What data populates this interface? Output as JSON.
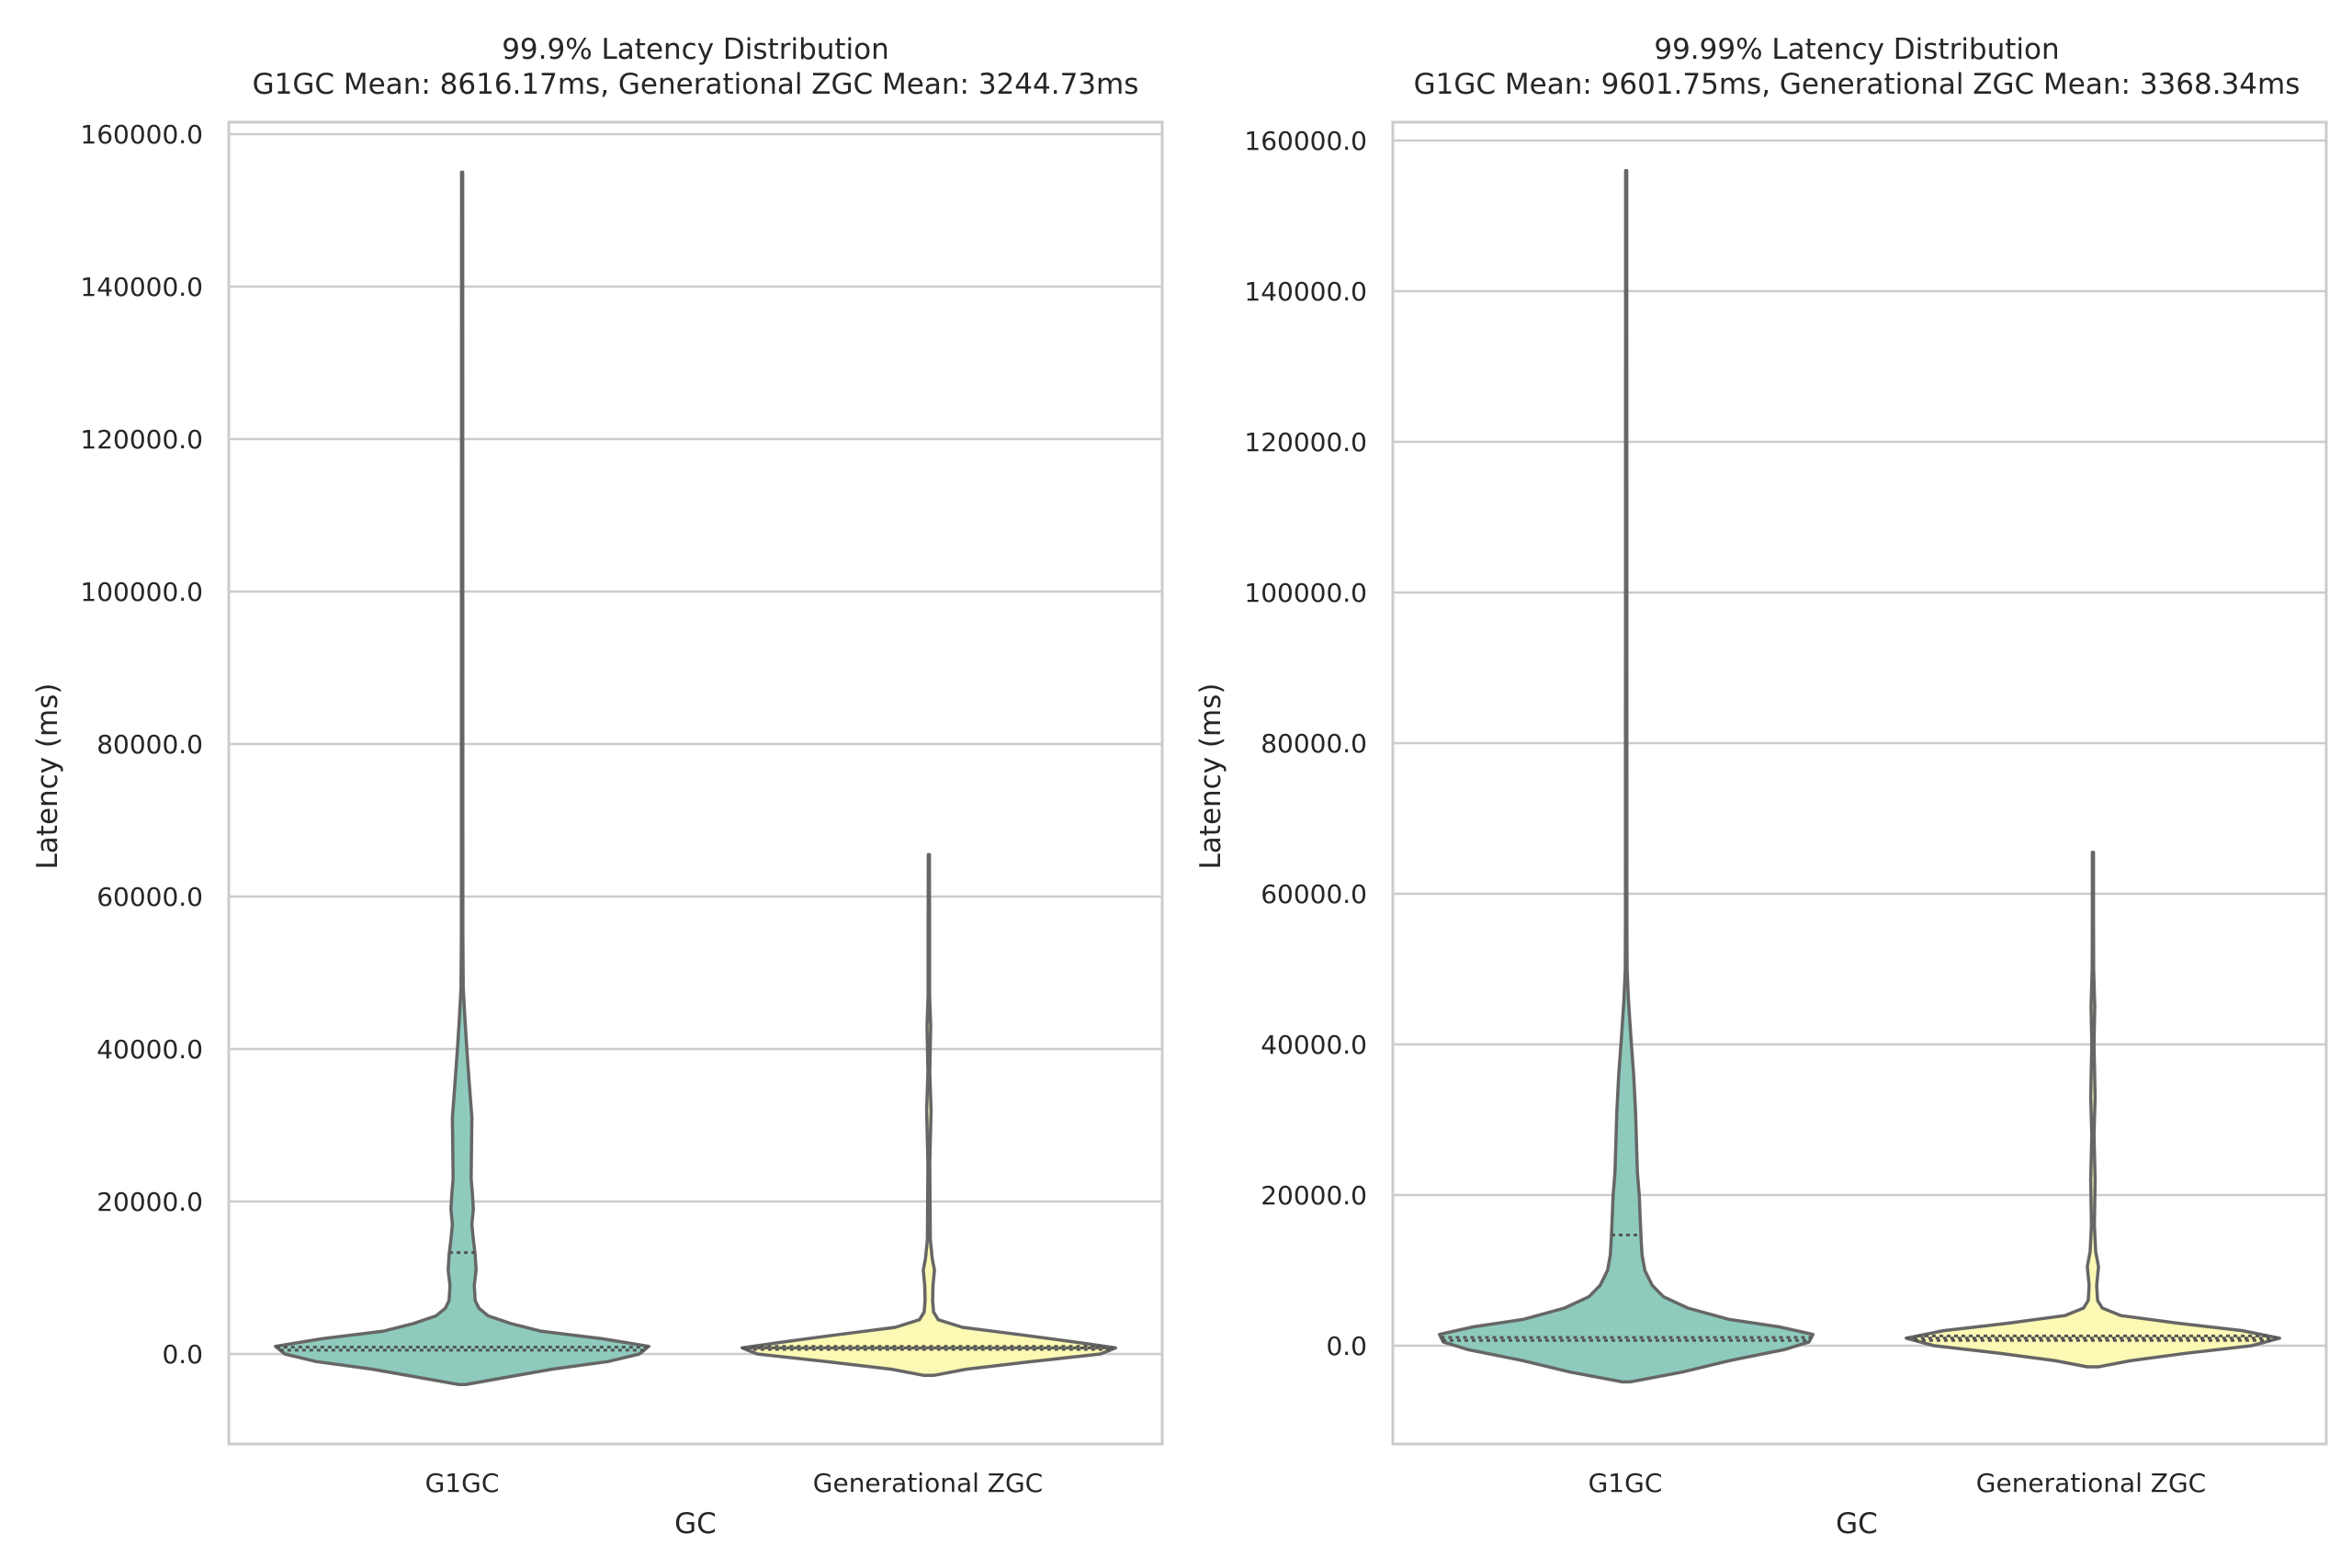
{
  "chart_data": [
    {
      "type": "violin",
      "title_line1": "99.9% Latency Distribution",
      "title_line2": "G1GC Mean: 8616.17ms, Generational ZGC Mean: 3244.73ms",
      "xlabel": "GC",
      "ylabel": "Latency (ms)",
      "ylim": [
        -12000,
        164000
      ],
      "yticks": [
        0,
        20000,
        40000,
        60000,
        80000,
        100000,
        120000,
        140000,
        160000
      ],
      "ytick_labels": [
        "0.0",
        "20000.0",
        "40000.0",
        "60000.0",
        "80000.0",
        "100000.0",
        "120000.0",
        "140000.0",
        "160000.0"
      ],
      "grid": true,
      "categories": [
        "G1GC",
        "Generational ZGC"
      ],
      "series": [
        {
          "name": "G1GC",
          "color": "#8ecbbd",
          "max": 155000,
          "quartiles": [
            500,
            900,
            13300
          ],
          "density": [
            [
              -4000,
              0.02
            ],
            [
              -3000,
              0.25
            ],
            [
              -2000,
              0.48
            ],
            [
              -1000,
              0.78
            ],
            [
              0,
              0.95
            ],
            [
              1000,
              1.0
            ],
            [
              2000,
              0.75
            ],
            [
              3000,
              0.42
            ],
            [
              4000,
              0.26
            ],
            [
              5000,
              0.14
            ],
            [
              6000,
              0.09
            ],
            [
              7000,
              0.07
            ],
            [
              9000,
              0.065
            ],
            [
              11000,
              0.075
            ],
            [
              13000,
              0.07
            ],
            [
              15000,
              0.06
            ],
            [
              17000,
              0.052
            ],
            [
              19000,
              0.06
            ],
            [
              21000,
              0.055
            ],
            [
              23000,
              0.048
            ],
            [
              27000,
              0.05
            ],
            [
              31000,
              0.052
            ],
            [
              35000,
              0.04
            ],
            [
              40000,
              0.025
            ],
            [
              44000,
              0.015
            ],
            [
              48000,
              0.006
            ],
            [
              55000,
              0.004
            ],
            [
              155000,
              0.003
            ]
          ]
        },
        {
          "name": "Generational ZGC",
          "color": "#fbf9b3",
          "max": 65500,
          "quartiles": [
            600,
            800,
            1000
          ],
          "density": [
            [
              -2800,
              0.03
            ],
            [
              -2000,
              0.2
            ],
            [
              -1000,
              0.55
            ],
            [
              0,
              0.92
            ],
            [
              800,
              1.0
            ],
            [
              1500,
              0.8
            ],
            [
              2500,
              0.5
            ],
            [
              3500,
              0.18
            ],
            [
              4500,
              0.05
            ],
            [
              5500,
              0.025
            ],
            [
              7000,
              0.02
            ],
            [
              9000,
              0.022
            ],
            [
              11000,
              0.03
            ],
            [
              12500,
              0.018
            ],
            [
              15000,
              0.008
            ],
            [
              25000,
              0.005
            ],
            [
              32000,
              0.012
            ],
            [
              37000,
              0.005
            ],
            [
              43000,
              0.01
            ],
            [
              47000,
              0.004
            ],
            [
              55000,
              0.004
            ],
            [
              65500,
              0.003
            ]
          ]
        }
      ]
    },
    {
      "type": "violin",
      "title_line1": "99.99% Latency Distribution",
      "title_line2": "G1GC Mean: 9601.75ms, Generational ZGC Mean: 3368.34ms",
      "xlabel": "GC",
      "ylabel": "Latency (ms)",
      "ylim": [
        -13000,
        164000
      ],
      "yticks": [
        0,
        20000,
        40000,
        60000,
        80000,
        100000,
        120000,
        140000,
        160000
      ],
      "ytick_labels": [
        "0.0",
        "20000.0",
        "40000.0",
        "60000.0",
        "80000.0",
        "100000.0",
        "120000.0",
        "140000.0",
        "160000.0"
      ],
      "grid": true,
      "categories": [
        "G1GC",
        "Generational ZGC"
      ],
      "series": [
        {
          "name": "G1GC",
          "color": "#8ecbbd",
          "max": 156000,
          "quartiles": [
            700,
            1100,
            14700
          ],
          "density": [
            [
              -4800,
              0.02
            ],
            [
              -3500,
              0.3
            ],
            [
              -2000,
              0.55
            ],
            [
              -500,
              0.85
            ],
            [
              500,
              0.98
            ],
            [
              1500,
              1.0
            ],
            [
              2500,
              0.82
            ],
            [
              3500,
              0.55
            ],
            [
              5000,
              0.33
            ],
            [
              6500,
              0.2
            ],
            [
              8000,
              0.14
            ],
            [
              10000,
              0.1
            ],
            [
              12000,
              0.085
            ],
            [
              14000,
              0.08
            ],
            [
              17000,
              0.075
            ],
            [
              20000,
              0.07
            ],
            [
              23000,
              0.06
            ],
            [
              27000,
              0.055
            ],
            [
              31000,
              0.05
            ],
            [
              36000,
              0.04
            ],
            [
              41000,
              0.025
            ],
            [
              46000,
              0.012
            ],
            [
              50000,
              0.005
            ],
            [
              56000,
              0.004
            ],
            [
              156000,
              0.003
            ]
          ]
        },
        {
          "name": "Generational ZGC",
          "color": "#fbf9b3",
          "max": 65500,
          "quartiles": [
            700,
            1000,
            1300
          ],
          "density": [
            [
              -2800,
              0.03
            ],
            [
              -2000,
              0.2
            ],
            [
              -1000,
              0.5
            ],
            [
              0,
              0.85
            ],
            [
              1000,
              1.0
            ],
            [
              2000,
              0.8
            ],
            [
              3000,
              0.45
            ],
            [
              4000,
              0.15
            ],
            [
              5000,
              0.05
            ],
            [
              6000,
              0.025
            ],
            [
              8000,
              0.02
            ],
            [
              10500,
              0.03
            ],
            [
              12500,
              0.015
            ],
            [
              16000,
              0.008
            ],
            [
              22000,
              0.012
            ],
            [
              28000,
              0.006
            ],
            [
              33000,
              0.012
            ],
            [
              40000,
              0.006
            ],
            [
              45000,
              0.01
            ],
            [
              50000,
              0.004
            ],
            [
              58000,
              0.003
            ],
            [
              65500,
              0.003
            ]
          ]
        }
      ]
    }
  ]
}
